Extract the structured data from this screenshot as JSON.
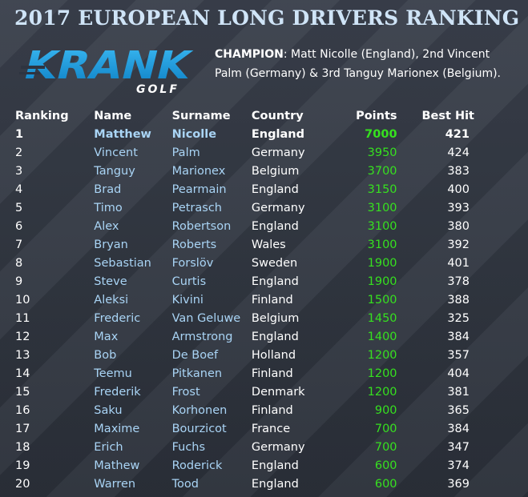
{
  "title": "2017 EUROPEAN LONG DRIVERS RANKING",
  "logo": {
    "main_text": "KRANK",
    "sub_text": "GOLF"
  },
  "champion": {
    "label": "CHAMPION",
    "text": ": Matt Nicolle (England), 2nd Vincent Palm (Germany) & 3rd Tanguy Marionex (Belgium)."
  },
  "table": {
    "headers": {
      "ranking": "Ranking",
      "name": "Name",
      "surname": "Surname",
      "country": "Country",
      "points": "Points",
      "best_hit": "Best Hit"
    },
    "rows": [
      {
        "ranking": "1",
        "name": "Matthew",
        "surname": "Nicolle",
        "country": "England",
        "points": "7000",
        "best_hit": "421"
      },
      {
        "ranking": "2",
        "name": "Vincent",
        "surname": "Palm",
        "country": "Germany",
        "points": "3950",
        "best_hit": "424"
      },
      {
        "ranking": "3",
        "name": "Tanguy",
        "surname": "Marionex",
        "country": "Belgium",
        "points": "3700",
        "best_hit": "383"
      },
      {
        "ranking": "4",
        "name": "Brad",
        "surname": "Pearmain",
        "country": "England",
        "points": "3150",
        "best_hit": "400"
      },
      {
        "ranking": "5",
        "name": "Timo",
        "surname": "Petrasch",
        "country": "Germany",
        "points": "3100",
        "best_hit": "393"
      },
      {
        "ranking": "6",
        "name": "Alex",
        "surname": "Robertson",
        "country": "England",
        "points": "3100",
        "best_hit": "380"
      },
      {
        "ranking": "7",
        "name": "Bryan",
        "surname": "Roberts",
        "country": "Wales",
        "points": "3100",
        "best_hit": "392"
      },
      {
        "ranking": "8",
        "name": "Sebastian",
        "surname": "Forslöv",
        "country": "Sweden",
        "points": "1900",
        "best_hit": "401"
      },
      {
        "ranking": "9",
        "name": "Steve",
        "surname": "Curtis",
        "country": "England",
        "points": "1900",
        "best_hit": "378"
      },
      {
        "ranking": "10",
        "name": "Aleksi",
        "surname": "Kivini",
        "country": "Finland",
        "points": "1500",
        "best_hit": "388"
      },
      {
        "ranking": "11",
        "name": "Frederic",
        "surname": "Van Geluwe",
        "country": "Belgium",
        "points": "1450",
        "best_hit": "325"
      },
      {
        "ranking": "12",
        "name": "Max",
        "surname": "Armstrong",
        "country": "England",
        "points": "1400",
        "best_hit": "384"
      },
      {
        "ranking": "13",
        "name": "Bob",
        "surname": "De Boef",
        "country": "Holland",
        "points": "1200",
        "best_hit": "357"
      },
      {
        "ranking": "14",
        "name": "Teemu",
        "surname": "Pitkanen",
        "country": "Finland",
        "points": "1200",
        "best_hit": "404"
      },
      {
        "ranking": "15",
        "name": "Frederik",
        "surname": "Frost",
        "country": "Denmark",
        "points": "1200",
        "best_hit": "381"
      },
      {
        "ranking": "16",
        "name": "Saku",
        "surname": "Korhonen",
        "country": "Finland",
        "points": "900",
        "best_hit": "365"
      },
      {
        "ranking": "17",
        "name": "Maxime",
        "surname": "Bourzicot",
        "country": "France",
        "points": "700",
        "best_hit": "384"
      },
      {
        "ranking": "18",
        "name": "Erich",
        "surname": "Fuchs",
        "country": "Germany",
        "points": "700",
        "best_hit": "347"
      },
      {
        "ranking": "19",
        "name": "Mathew",
        "surname": "Roderick",
        "country": "England",
        "points": "600",
        "best_hit": "374"
      },
      {
        "ranking": "20",
        "name": "Warren",
        "surname": "Tood",
        "country": "England",
        "points": "600",
        "best_hit": "369"
      }
    ]
  },
  "colors": {
    "background": "#2e3440",
    "title": "#cfe4f7",
    "name_text": "#a9d4f5",
    "points_text": "#36e11f",
    "logo_blue": "#1aa3e8"
  }
}
